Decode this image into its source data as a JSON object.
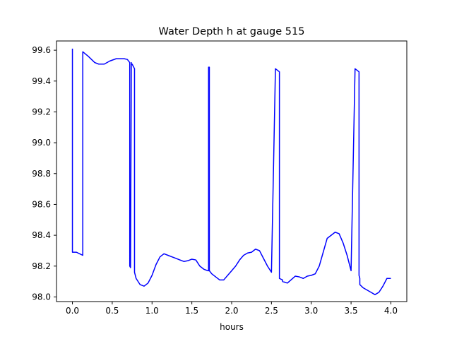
{
  "chart_data": {
    "type": "line",
    "title": "Water Depth h at gauge 515",
    "xlabel": "hours",
    "ylabel": "",
    "xlim": [
      -0.2,
      4.2
    ],
    "ylim": [
      97.97,
      99.66
    ],
    "grid": false,
    "xticks": [
      0.0,
      0.5,
      1.0,
      1.5,
      2.0,
      2.5,
      3.0,
      3.5,
      4.0
    ],
    "xtick_labels": [
      "0.0",
      "0.5",
      "1.0",
      "1.5",
      "2.0",
      "2.5",
      "3.0",
      "3.5",
      "4.0"
    ],
    "yticks": [
      98.0,
      98.2,
      98.4,
      98.6,
      98.8,
      99.0,
      99.2,
      99.4,
      99.6
    ],
    "ytick_labels": [
      "98.0",
      "98.2",
      "98.4",
      "98.6",
      "98.8",
      "99.0",
      "99.2",
      "99.4",
      "99.6"
    ],
    "series": [
      {
        "color": "#0000ff",
        "x": [
          0.0,
          0.0,
          0.05,
          0.09,
          0.13,
          0.13,
          0.2,
          0.28,
          0.33,
          0.4,
          0.47,
          0.55,
          0.6,
          0.65,
          0.69,
          0.72,
          0.72,
          0.73,
          0.74,
          0.74,
          0.75,
          0.78,
          0.78,
          0.8,
          0.85,
          0.9,
          0.95,
          1.0,
          1.05,
          1.1,
          1.15,
          1.2,
          1.25,
          1.3,
          1.4,
          1.45,
          1.5,
          1.55,
          1.6,
          1.65,
          1.7,
          1.71,
          1.71,
          1.72,
          1.72,
          1.75,
          1.8,
          1.85,
          1.9,
          1.95,
          2.0,
          2.05,
          2.1,
          2.15,
          2.2,
          2.25,
          2.3,
          2.35,
          2.4,
          2.45,
          2.5,
          2.55,
          2.6,
          2.6,
          2.64,
          2.64,
          2.7,
          2.8,
          2.85,
          2.9,
          2.95,
          3.0,
          3.05,
          3.1,
          3.15,
          3.2,
          3.3,
          3.35,
          3.4,
          3.45,
          3.5,
          3.55,
          3.6,
          3.6,
          3.61,
          3.61,
          3.65,
          3.7,
          3.75,
          3.8,
          3.85,
          3.9,
          3.95,
          4.0
        ],
        "values": [
          99.61,
          98.29,
          98.29,
          98.28,
          98.27,
          99.59,
          99.56,
          99.52,
          99.51,
          99.51,
          99.53,
          99.545,
          99.545,
          99.545,
          99.54,
          99.52,
          98.2,
          98.19,
          99.52,
          99.51,
          99.51,
          99.48,
          98.16,
          98.12,
          98.08,
          98.07,
          98.09,
          98.14,
          98.21,
          98.26,
          98.28,
          98.27,
          98.26,
          98.25,
          98.23,
          98.235,
          98.245,
          98.24,
          98.2,
          98.18,
          98.17,
          98.17,
          99.49,
          99.49,
          98.17,
          98.15,
          98.13,
          98.11,
          98.11,
          98.14,
          98.17,
          98.2,
          98.24,
          98.27,
          98.285,
          98.29,
          98.31,
          98.3,
          98.25,
          98.2,
          98.16,
          99.48,
          99.46,
          98.12,
          98.11,
          98.1,
          98.09,
          98.135,
          98.13,
          98.12,
          98.135,
          98.14,
          98.15,
          98.2,
          98.29,
          98.38,
          98.42,
          98.41,
          98.35,
          98.27,
          98.17,
          99.48,
          99.46,
          98.14,
          98.12,
          98.08,
          98.06,
          98.045,
          98.03,
          98.015,
          98.03,
          98.07,
          98.12,
          98.12
        ]
      }
    ]
  }
}
